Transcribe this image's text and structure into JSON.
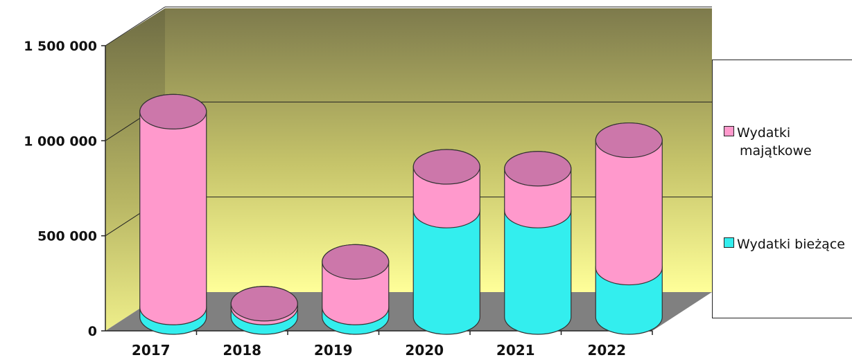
{
  "chart_data": {
    "type": "bar",
    "categories": [
      "2017",
      "2018",
      "2019",
      "2020",
      "2021",
      "2022"
    ],
    "series": [
      {
        "name": "Wydatki bieżące",
        "values": [
          50000,
          50000,
          50000,
          560000,
          560000,
          260000
        ],
        "color": "#33eeee"
      },
      {
        "name": "Wydatki majątkowe",
        "values": [
          1030000,
          20000,
          240000,
          230000,
          220000,
          670000
        ],
        "color": "#ff99cc"
      }
    ],
    "stacked": true,
    "ylim": [
      0,
      1500000
    ],
    "yticks": [
      "0",
      "500 000",
      "1 000 000",
      "1 500 000"
    ],
    "ytick_values": [
      0,
      500000,
      1000000,
      1500000
    ],
    "title": "",
    "xlabel": "",
    "ylabel": "",
    "grid": true,
    "legend_position": "right",
    "style": "3d-cylinder",
    "colors": {
      "floor": "#808080",
      "wall_top": "#7d7a4c",
      "wall_bottom": "#ffff99"
    }
  },
  "legend": {
    "items": [
      {
        "label_line1": "Wydatki",
        "label_line2": "majątkowe",
        "color": "#ff99cc"
      },
      {
        "label_line1": "Wydatki bieżące",
        "color": "#33eeee"
      }
    ]
  }
}
